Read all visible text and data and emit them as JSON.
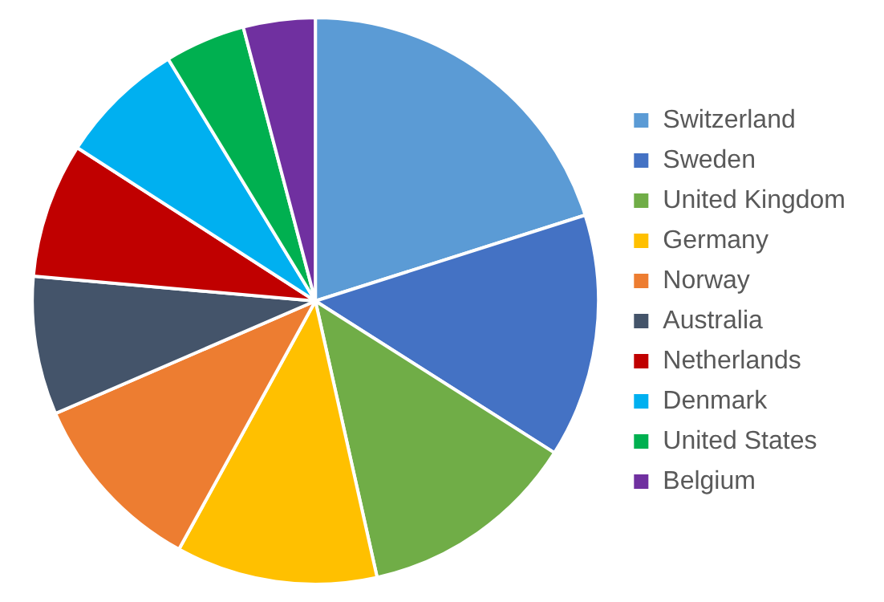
{
  "chart_data": {
    "type": "pie",
    "categories": [
      "Switzerland",
      "Sweden",
      "United Kingdom",
      "Germany",
      "Norway",
      "Australia",
      "Netherlands",
      "Denmark",
      "United States",
      "Belgium"
    ],
    "values": [
      20.1,
      13.9,
      12.5,
      11.5,
      10.5,
      7.9,
      7.7,
      7.2,
      4.6,
      4.1
    ],
    "colors": [
      "#5b9bd5",
      "#4472c4",
      "#70ad47",
      "#ffc000",
      "#ed7d31",
      "#44546a",
      "#c00000",
      "#00b0f0",
      "#00b050",
      "#7030a0"
    ],
    "legend": "right"
  }
}
